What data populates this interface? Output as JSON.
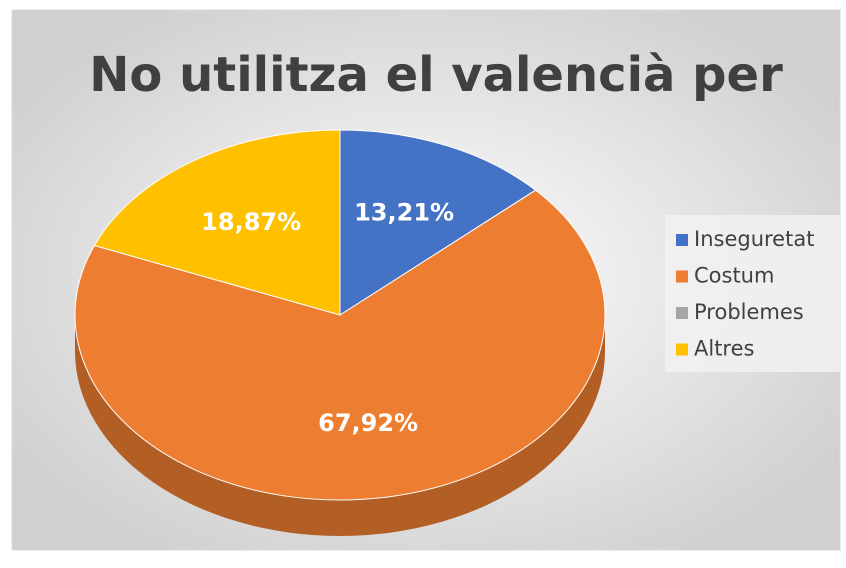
{
  "chart_data": {
    "type": "pie",
    "title": "No utilitza el valencià per",
    "categories": [
      "Inseguretat",
      "Costum",
      "Problemes",
      "Altres"
    ],
    "values": [
      13.21,
      67.92,
      0,
      18.87
    ],
    "value_labels": [
      "13,21%",
      "67,92%",
      null,
      "18,87%"
    ],
    "colors": [
      "#4472c4",
      "#ed7d31",
      "#a5a5a5",
      "#ffc000"
    ],
    "legend": "right"
  }
}
